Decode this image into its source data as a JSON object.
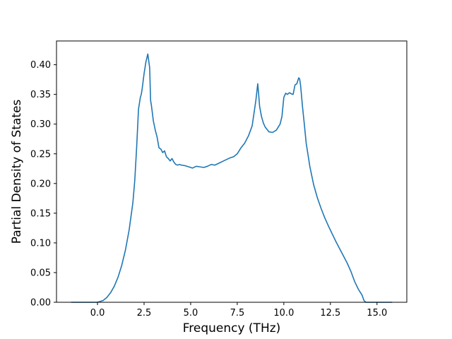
{
  "chart_data": {
    "type": "line",
    "title": "",
    "xlabel": "Frequency (THz)",
    "ylabel": "Partial Density of States",
    "xlim": [
      -2.2,
      16.6
    ],
    "ylim": [
      0.0,
      0.44
    ],
    "x_ticks": [
      0.0,
      2.5,
      5.0,
      7.5,
      10.0,
      12.5,
      15.0
    ],
    "x_tick_labels": [
      "0.0",
      "2.5",
      "5.0",
      "7.5",
      "10.0",
      "12.5",
      "15.0"
    ],
    "y_ticks": [
      0.0,
      0.05,
      0.1,
      0.15,
      0.2,
      0.25,
      0.3,
      0.35,
      0.4
    ],
    "y_tick_labels": [
      "0.00",
      "0.05",
      "0.10",
      "0.15",
      "0.20",
      "0.25",
      "0.30",
      "0.35",
      "0.40"
    ],
    "grid": false,
    "legend": "none",
    "series": [
      {
        "color": "#1f77b4",
        "x": [
          -1.4,
          -1.0,
          -0.5,
          0.0,
          0.3,
          0.5,
          0.7,
          0.9,
          1.1,
          1.3,
          1.5,
          1.7,
          1.9,
          2.0,
          2.1,
          2.2,
          2.3,
          2.35,
          2.4,
          2.5,
          2.6,
          2.7,
          2.8,
          2.85,
          2.9,
          3.0,
          3.1,
          3.2,
          3.3,
          3.4,
          3.5,
          3.6,
          3.7,
          3.8,
          3.9,
          4.0,
          4.1,
          4.2,
          4.3,
          4.4,
          4.5,
          4.7,
          4.9,
          5.1,
          5.3,
          5.5,
          5.7,
          5.9,
          6.1,
          6.3,
          6.5,
          6.7,
          6.9,
          7.1,
          7.3,
          7.5,
          7.7,
          7.9,
          8.1,
          8.3,
          8.5,
          8.6,
          8.65,
          8.7,
          8.8,
          8.9,
          9.0,
          9.2,
          9.4,
          9.6,
          9.8,
          9.9,
          10.0,
          10.1,
          10.2,
          10.3,
          10.4,
          10.5,
          10.6,
          10.7,
          10.8,
          10.85,
          10.9,
          11.0,
          11.1,
          11.2,
          11.4,
          11.6,
          11.8,
          12.0,
          12.2,
          12.4,
          12.6,
          12.8,
          13.0,
          13.2,
          13.4,
          13.6,
          13.8,
          14.0,
          14.2,
          14.3,
          14.4,
          14.5,
          14.7,
          15.0,
          15.3,
          15.8
        ],
        "y": [
          0.0,
          0.0,
          0.0,
          0.0,
          0.003,
          0.008,
          0.016,
          0.027,
          0.042,
          0.062,
          0.088,
          0.122,
          0.168,
          0.205,
          0.26,
          0.325,
          0.345,
          0.35,
          0.36,
          0.385,
          0.405,
          0.418,
          0.395,
          0.34,
          0.33,
          0.305,
          0.29,
          0.278,
          0.26,
          0.258,
          0.252,
          0.255,
          0.245,
          0.242,
          0.238,
          0.242,
          0.236,
          0.232,
          0.231,
          0.232,
          0.231,
          0.23,
          0.228,
          0.226,
          0.229,
          0.228,
          0.227,
          0.229,
          0.232,
          0.231,
          0.234,
          0.237,
          0.24,
          0.243,
          0.245,
          0.25,
          0.26,
          0.268,
          0.28,
          0.297,
          0.34,
          0.368,
          0.35,
          0.33,
          0.313,
          0.302,
          0.295,
          0.287,
          0.286,
          0.29,
          0.3,
          0.313,
          0.345,
          0.352,
          0.35,
          0.353,
          0.351,
          0.35,
          0.366,
          0.368,
          0.378,
          0.376,
          0.365,
          0.33,
          0.3,
          0.268,
          0.228,
          0.198,
          0.176,
          0.158,
          0.142,
          0.128,
          0.115,
          0.102,
          0.09,
          0.078,
          0.066,
          0.052,
          0.035,
          0.022,
          0.012,
          0.003,
          0.0,
          0.0,
          0.0,
          0.0,
          0.0,
          0.0
        ]
      }
    ]
  }
}
